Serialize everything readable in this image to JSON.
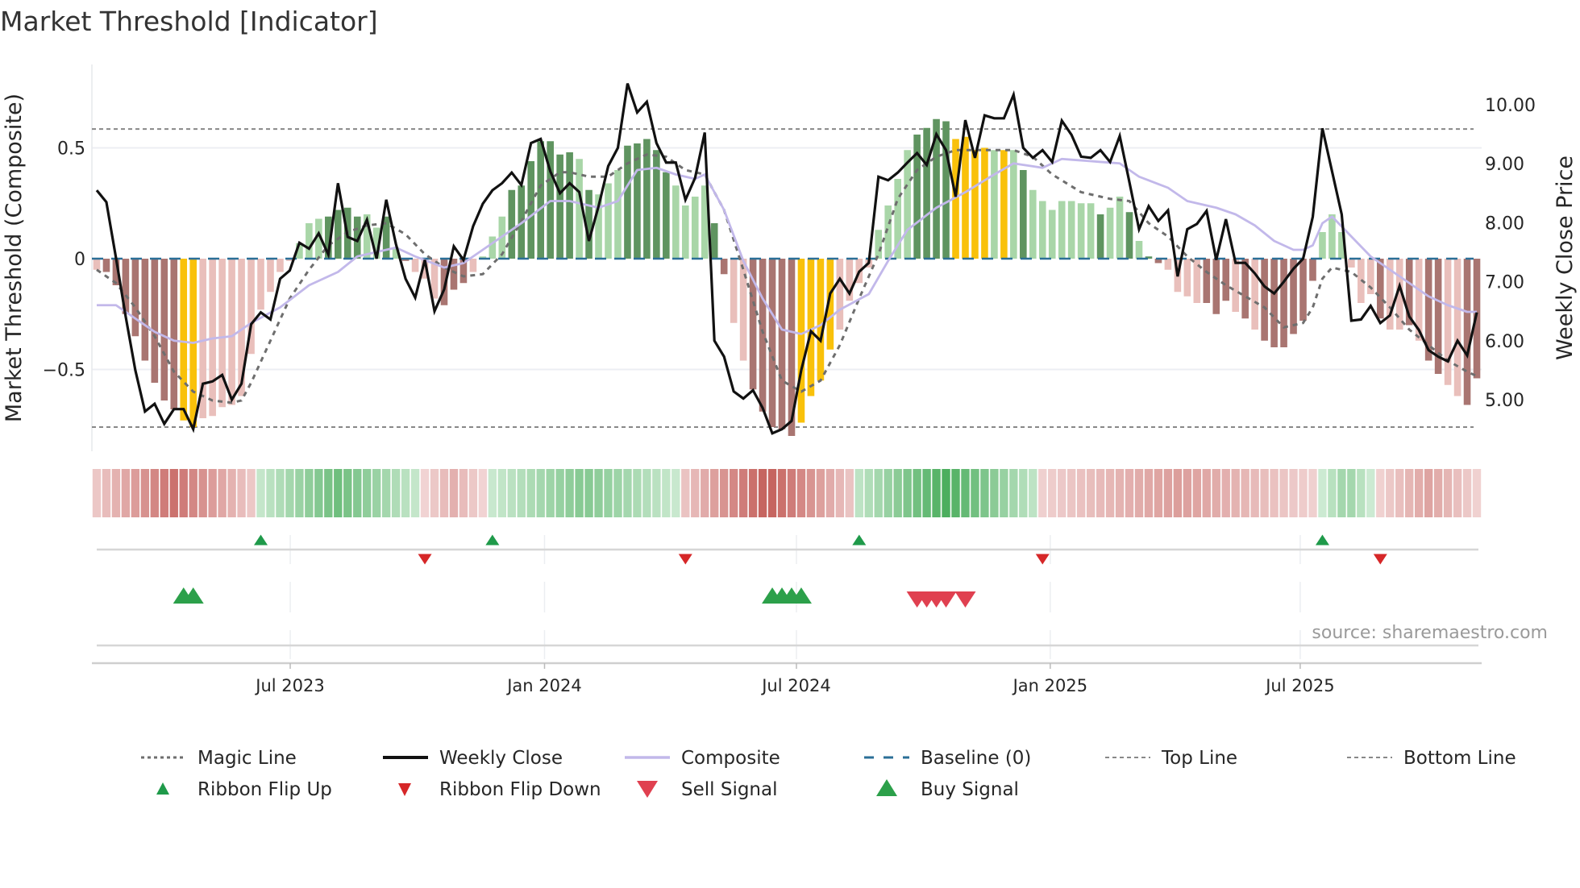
{
  "title": "Market Threshold [Indicator]",
  "source": "source: sharemaestro.com",
  "colors": {
    "bar_neg_dark": "#a97571",
    "bar_neg_light": "#e9bfbb",
    "bar_pos_dark": "#5f9460",
    "bar_pos_light": "#a9d6a8",
    "bar_signal": "#f9c10a",
    "close": "#111111",
    "composite": "#c2b8ea",
    "magic": "#6e6e6e",
    "baseline": "#2b6f97",
    "threshold": "#888888",
    "ribbon_red_light": "#f4dcdc",
    "ribbon_red_dark": "#c45f5a",
    "ribbon_green_light": "#d9f0dd",
    "ribbon_green_dark": "#4cae5e",
    "flip_up": "#1f9a4a",
    "flip_down": "#d62728",
    "sell": "#e04050",
    "buy": "#2ca04a"
  },
  "chart_data": {
    "type": "bar",
    "title": "Market Threshold [Indicator]",
    "ylabel": "Market Threshold (Composite)",
    "y2label": "Weekly Close Price",
    "ylim": [
      -0.86,
      0.9
    ],
    "y2lim": [
      4.22,
      10.77
    ],
    "yticks": [
      {
        "v": 0.5,
        "label": "0.5"
      },
      {
        "v": 0,
        "label": "0"
      },
      {
        "v": -0.5,
        "label": "−0.5"
      }
    ],
    "y2ticks": [
      {
        "v": 10,
        "label": "10.00"
      },
      {
        "v": 9,
        "label": "9.00"
      },
      {
        "v": 8,
        "label": "8.00"
      },
      {
        "v": 7,
        "label": "7.00"
      },
      {
        "v": 6,
        "label": "6.00"
      },
      {
        "v": 5,
        "label": "5.00"
      }
    ],
    "xticks": [
      {
        "week": 20.05,
        "label": "Jul 2023"
      },
      {
        "week": 46.4,
        "label": "Jan 2024"
      },
      {
        "week": 72.5,
        "label": "Jul 2024"
      },
      {
        "week": 98.8,
        "label": "Jan 2025"
      },
      {
        "week": 124.7,
        "label": "Jul 2025"
      }
    ],
    "top_line": 0.585,
    "bottom_line": -0.76,
    "baseline": 0,
    "composite_bars": [
      -0.05,
      -0.06,
      -0.12,
      -0.25,
      -0.35,
      -0.46,
      -0.56,
      -0.64,
      -0.68,
      -0.73,
      -0.76,
      -0.72,
      -0.71,
      -0.67,
      -0.66,
      -0.62,
      -0.43,
      -0.23,
      -0.15,
      -0.06,
      -0.01,
      0.07,
      0.16,
      0.18,
      0.19,
      0.22,
      0.23,
      0.19,
      0.2,
      0.14,
      0.19,
      0.05,
      -0.01,
      -0.06,
      -0.09,
      -0.18,
      -0.21,
      -0.14,
      -0.11,
      -0.06,
      0.01,
      0.1,
      0.19,
      0.31,
      0.33,
      0.44,
      0.53,
      0.53,
      0.47,
      0.48,
      0.45,
      0.31,
      0.29,
      0.34,
      0.4,
      0.51,
      0.52,
      0.54,
      0.49,
      0.39,
      0.33,
      0.24,
      0.28,
      0.33,
      0.16,
      -0.07,
      -0.29,
      -0.46,
      -0.59,
      -0.69,
      -0.76,
      -0.77,
      -0.8,
      -0.74,
      -0.62,
      -0.55,
      -0.41,
      -0.32,
      -0.19,
      -0.11,
      -0.04,
      0.13,
      0.24,
      0.36,
      0.49,
      0.56,
      0.59,
      0.63,
      0.62,
      0.54,
      0.55,
      0.49,
      0.5,
      0.49,
      0.49,
      0.49,
      0.4,
      0.31,
      0.26,
      0.22,
      0.26,
      0.26,
      0.25,
      0.25,
      0.2,
      0.23,
      0.28,
      0.21,
      0.08,
      0.01,
      -0.02,
      -0.05,
      -0.15,
      -0.17,
      -0.2,
      -0.2,
      -0.25,
      -0.19,
      -0.24,
      -0.27,
      -0.32,
      -0.37,
      -0.4,
      -0.4,
      -0.34,
      -0.28,
      -0.1,
      0.12,
      0.2,
      0.12,
      -0.04,
      -0.2,
      -0.16,
      -0.27,
      -0.32,
      -0.32,
      -0.3,
      -0.37,
      -0.46,
      -0.52,
      -0.57,
      -0.62,
      -0.66,
      -0.54
    ],
    "bar_shades": "lddddddddyylllllllllllllddddlldldllldddlllldddddddldllldddddllllddlldddddyyyyllllllllddddyyyylyldllllllldlldlddlllldddldlddddddlllllldlldlddlldddddddl",
    "weekly_close": [
      8.55,
      8.35,
      7.4,
      6.41,
      5.5,
      4.8,
      4.93,
      4.59,
      4.84,
      4.84,
      4.5,
      5.27,
      5.31,
      5.42,
      5.0,
      5.27,
      6.28,
      6.48,
      6.36,
      7.05,
      7.19,
      7.66,
      7.56,
      7.82,
      7.46,
      8.67,
      7.76,
      7.69,
      8.05,
      7.39,
      8.39,
      7.64,
      7.05,
      6.73,
      7.37,
      6.5,
      6.87,
      7.6,
      7.37,
      7.94,
      8.32,
      8.55,
      8.67,
      8.85,
      8.64,
      9.35,
      9.42,
      8.87,
      8.5,
      8.67,
      8.52,
      7.69,
      8.28,
      8.96,
      9.27,
      10.36,
      9.87,
      10.05,
      9.35,
      9.02,
      9.02,
      8.39,
      8.76,
      9.53,
      6.0,
      5.73,
      5.14,
      5.02,
      5.16,
      4.86,
      4.43,
      4.5,
      4.64,
      5.5,
      6.16,
      6.0,
      6.8,
      7.05,
      6.8,
      7.17,
      7.32,
      8.78,
      8.72,
      8.85,
      9.02,
      9.18,
      8.98,
      9.5,
      9.23,
      8.44,
      9.74,
      9.1,
      9.82,
      9.77,
      9.77,
      10.17,
      9.27,
      9.1,
      9.23,
      9.03,
      9.73,
      9.49,
      9.12,
      9.1,
      9.23,
      9.03,
      9.47,
      8.69,
      7.89,
      8.28,
      8.03,
      8.21,
      7.09,
      7.89,
      7.98,
      8.2,
      7.37,
      8.06,
      7.32,
      7.32,
      7.14,
      6.92,
      6.8,
      7.0,
      7.22,
      7.39,
      8.1,
      9.6,
      8.87,
      8.14,
      6.34,
      6.36,
      6.59,
      6.3,
      6.43,
      6.93,
      6.41,
      6.18,
      5.84,
      5.73,
      5.65,
      6.0,
      5.75,
      6.48
    ],
    "composite_line": [
      [
        0,
        -0.21
      ],
      [
        2,
        -0.21
      ],
      [
        4,
        -0.27
      ],
      [
        6,
        -0.33
      ],
      [
        8,
        -0.37
      ],
      [
        10,
        -0.38
      ],
      [
        12,
        -0.36
      ],
      [
        14,
        -0.35
      ],
      [
        16,
        -0.29
      ],
      [
        19,
        -0.22
      ],
      [
        22,
        -0.12
      ],
      [
        25,
        -0.06
      ],
      [
        27,
        0.01
      ],
      [
        29,
        0.03
      ],
      [
        31,
        0.05
      ],
      [
        33,
        0.01
      ],
      [
        36,
        -0.04
      ],
      [
        38,
        -0.02
      ],
      [
        41,
        0.07
      ],
      [
        44,
        0.16
      ],
      [
        47,
        0.26
      ],
      [
        49,
        0.26
      ],
      [
        52,
        0.23
      ],
      [
        54,
        0.26
      ],
      [
        56,
        0.4
      ],
      [
        58,
        0.41
      ],
      [
        60,
        0.38
      ],
      [
        62,
        0.36
      ],
      [
        63,
        0.38
      ],
      [
        65,
        0.22
      ],
      [
        67,
        -0.01
      ],
      [
        69,
        -0.18
      ],
      [
        71,
        -0.32
      ],
      [
        73,
        -0.34
      ],
      [
        75,
        -0.3
      ],
      [
        77,
        -0.23
      ],
      [
        80,
        -0.16
      ],
      [
        82,
        -0.01
      ],
      [
        84,
        0.13
      ],
      [
        87,
        0.23
      ],
      [
        90,
        0.3
      ],
      [
        93,
        0.38
      ],
      [
        95,
        0.43
      ],
      [
        98,
        0.41
      ],
      [
        100,
        0.45
      ],
      [
        103,
        0.44
      ],
      [
        106,
        0.43
      ],
      [
        108,
        0.37
      ],
      [
        111,
        0.32
      ],
      [
        113,
        0.26
      ],
      [
        116,
        0.23
      ],
      [
        118,
        0.2
      ],
      [
        120,
        0.15
      ],
      [
        122,
        0.08
      ],
      [
        124,
        0.04
      ],
      [
        125,
        0.04
      ],
      [
        126,
        0.06
      ],
      [
        127,
        0.16
      ],
      [
        128,
        0.19
      ],
      [
        130,
        0.1
      ],
      [
        132,
        0.01
      ],
      [
        134,
        -0.05
      ],
      [
        136,
        -0.11
      ],
      [
        138,
        -0.17
      ],
      [
        140,
        -0.21
      ],
      [
        142,
        -0.24
      ],
      [
        143,
        -0.24
      ]
    ],
    "magic_line": [
      [
        0,
        -0.05
      ],
      [
        2,
        -0.11
      ],
      [
        4,
        -0.22
      ],
      [
        6,
        -0.35
      ],
      [
        8,
        -0.51
      ],
      [
        10,
        -0.6
      ],
      [
        12,
        -0.64
      ],
      [
        14,
        -0.65
      ],
      [
        15,
        -0.64
      ],
      [
        16,
        -0.56
      ],
      [
        18,
        -0.37
      ],
      [
        20,
        -0.18
      ],
      [
        22,
        -0.05
      ],
      [
        24,
        0.06
      ],
      [
        26,
        0.12
      ],
      [
        28,
        0.15
      ],
      [
        30,
        0.16
      ],
      [
        32,
        0.11
      ],
      [
        34,
        0.02
      ],
      [
        36,
        -0.04
      ],
      [
        38,
        -0.08
      ],
      [
        40,
        -0.07
      ],
      [
        42,
        0.02
      ],
      [
        44,
        0.17
      ],
      [
        46,
        0.33
      ],
      [
        48,
        0.39
      ],
      [
        49,
        0.39
      ],
      [
        51,
        0.37
      ],
      [
        53,
        0.37
      ],
      [
        55,
        0.43
      ],
      [
        57,
        0.47
      ],
      [
        59,
        0.46
      ],
      [
        61,
        0.4
      ],
      [
        63,
        0.38
      ],
      [
        65,
        0.22
      ],
      [
        67,
        -0.05
      ],
      [
        69,
        -0.33
      ],
      [
        71,
        -0.55
      ],
      [
        73,
        -0.6
      ],
      [
        75,
        -0.55
      ],
      [
        77,
        -0.39
      ],
      [
        79,
        -0.18
      ],
      [
        81,
        0.02
      ],
      [
        83,
        0.27
      ],
      [
        85,
        0.4
      ],
      [
        87,
        0.46
      ],
      [
        89,
        0.49
      ],
      [
        92,
        0.49
      ],
      [
        95,
        0.49
      ],
      [
        97,
        0.46
      ],
      [
        99,
        0.38
      ],
      [
        102,
        0.3
      ],
      [
        105,
        0.27
      ],
      [
        107,
        0.26
      ],
      [
        109,
        0.16
      ],
      [
        111,
        0.1
      ],
      [
        113,
        0.01
      ],
      [
        115,
        -0.06
      ],
      [
        117,
        -0.12
      ],
      [
        119,
        -0.17
      ],
      [
        121,
        -0.22
      ],
      [
        123,
        -0.31
      ],
      [
        125,
        -0.29
      ],
      [
        126,
        -0.22
      ],
      [
        127,
        -0.09
      ],
      [
        128,
        -0.04
      ],
      [
        130,
        -0.06
      ],
      [
        132,
        -0.13
      ],
      [
        134,
        -0.22
      ],
      [
        136,
        -0.32
      ],
      [
        138,
        -0.39
      ],
      [
        140,
        -0.46
      ],
      [
        142,
        -0.51
      ],
      [
        143,
        -0.53
      ]
    ],
    "ribbon_segments": [
      {
        "from": 0,
        "to": 16,
        "sign": -1,
        "peak": 0.85
      },
      {
        "from": 17,
        "to": 33,
        "sign": 1,
        "peak": 0.75
      },
      {
        "from": 34,
        "to": 40,
        "sign": -1,
        "peak": 0.35
      },
      {
        "from": 41,
        "to": 60,
        "sign": 1,
        "peak": 0.6
      },
      {
        "from": 61,
        "to": 78,
        "sign": -1,
        "peak": 1.0
      },
      {
        "from": 79,
        "to": 97,
        "sign": 1,
        "peak": 1.0
      },
      {
        "from": 98,
        "to": 126,
        "sign": -1,
        "peak": 0.5
      },
      {
        "from": 127,
        "to": 132,
        "sign": 1,
        "peak": 0.45
      },
      {
        "from": 133,
        "to": 143,
        "sign": -1,
        "peak": 0.45
      }
    ],
    "ribbon_flip_up": [
      17,
      41,
      79,
      127
    ],
    "ribbon_flip_down": [
      34,
      61,
      98,
      133
    ],
    "buy_signals": [
      9,
      10,
      70,
      71,
      72,
      73
    ],
    "sell_signals": [
      85,
      86,
      87,
      88,
      90
    ],
    "legend": [
      {
        "label": "Magic Line",
        "marker": "dotted-line"
      },
      {
        "label": "Weekly Close",
        "marker": "solid-line"
      },
      {
        "label": "Composite",
        "marker": "lavender-line"
      },
      {
        "label": "Baseline (0)",
        "marker": "dashed-line"
      },
      {
        "label": "Top Line",
        "marker": "thin-dotted-line"
      },
      {
        "label": "Bottom Line",
        "marker": "thin-dotted-line"
      },
      {
        "label": "Ribbon Flip Up",
        "marker": "small-up-triangle"
      },
      {
        "label": "Ribbon Flip Down",
        "marker": "small-down-triangle"
      },
      {
        "label": "Sell Signal",
        "marker": "down-triangle"
      },
      {
        "label": "Buy Signal",
        "marker": "up-triangle"
      }
    ]
  }
}
